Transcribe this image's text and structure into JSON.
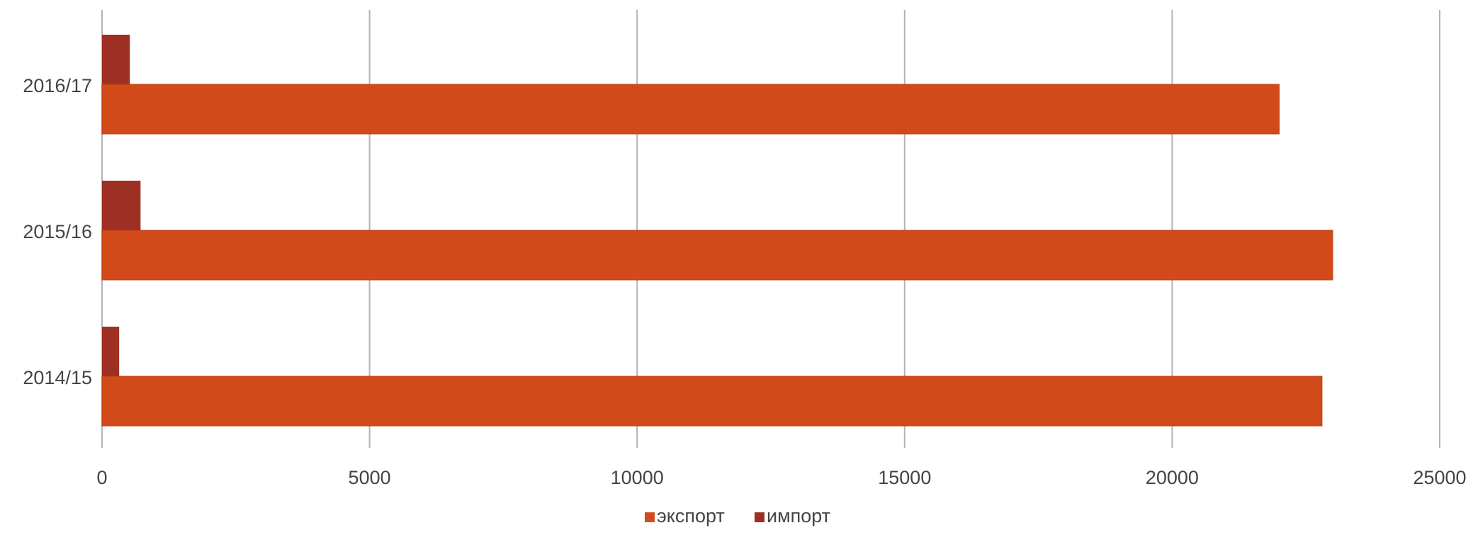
{
  "chart_data": {
    "type": "bar",
    "orientation": "horizontal",
    "categories": [
      "2016/17",
      "2015/16",
      "2014/15"
    ],
    "series": [
      {
        "name": "импорт",
        "color": "#9e2f23",
        "values": [
          520,
          720,
          320
        ]
      },
      {
        "name": "экспорт",
        "color": "#d24a19",
        "values": [
          22000,
          23000,
          22800
        ]
      }
    ],
    "xlim": [
      0,
      25000
    ],
    "xticks": [
      "0",
      "5000",
      "10000",
      "15000",
      "20000",
      "25000"
    ],
    "grid": true,
    "legend": {
      "position": "bottom-center",
      "items": [
        {
          "label": "экспорт",
          "color": "#d24a19"
        },
        {
          "label": "импорт",
          "color": "#9e2f23"
        }
      ]
    },
    "title": "",
    "xlabel": "",
    "ylabel": ""
  }
}
